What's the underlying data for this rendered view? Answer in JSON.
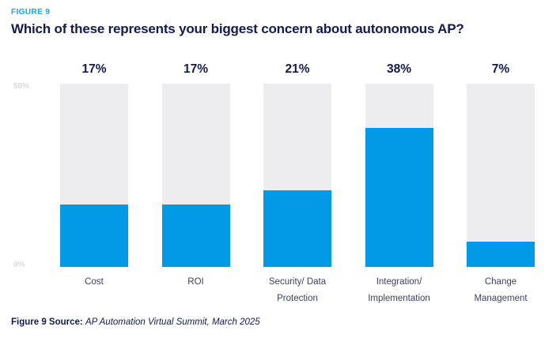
{
  "figure_label": "FIGURE 9",
  "title": "Which of these represents your biggest concern about autonomous AP?",
  "axis": {
    "top_tick": "50%",
    "bottom_tick": "0%"
  },
  "source": {
    "label": "Figure 9 Source:",
    "text": "AP Automation Virtual Summit, March 2025"
  },
  "colors": {
    "bar_fill": "#029AE6",
    "bar_track": "#EDEDEF",
    "accent_blue": "#19A3EB",
    "navy": "#131B4D",
    "category_text": "#3E415F",
    "tick_text": "#D8DADF"
  },
  "chart_data": {
    "type": "bar",
    "title": "Which of these represents your biggest concern about autonomous AP?",
    "categories": [
      "Cost",
      "ROI",
      "Security/ Data Protection",
      "Integration/ Implementation",
      "Change Management"
    ],
    "category_lines": [
      [
        "Cost"
      ],
      [
        "ROI"
      ],
      [
        "Security/ Data",
        "Protection"
      ],
      [
        "Integration/",
        "Implementation"
      ],
      [
        "Change",
        "Management"
      ]
    ],
    "values": [
      17,
      17,
      21,
      38,
      7
    ],
    "value_labels": [
      "17%",
      "17%",
      "21%",
      "38%",
      "7%"
    ],
    "xlabel": "",
    "ylabel": "",
    "ylim": [
      0,
      50
    ],
    "yticks": [
      "0%",
      "50%"
    ],
    "grid": false,
    "legend": false
  }
}
